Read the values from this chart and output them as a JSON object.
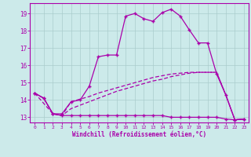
{
  "xlabel": "Windchill (Refroidissement éolien,°C)",
  "background_color": "#cceaea",
  "grid_color": "#aacccc",
  "line_color": "#aa00aa",
  "xlim": [
    -0.5,
    23.5
  ],
  "ylim": [
    12.7,
    19.6
  ],
  "yticks": [
    13,
    14,
    15,
    16,
    17,
    18,
    19
  ],
  "xticks": [
    0,
    1,
    2,
    3,
    4,
    5,
    6,
    7,
    8,
    9,
    10,
    11,
    12,
    13,
    14,
    15,
    16,
    17,
    18,
    19,
    20,
    21,
    22,
    23
  ],
  "line1_x": [
    0,
    1,
    2,
    3,
    4,
    5,
    6,
    7,
    8,
    9,
    10,
    11,
    12,
    13,
    14,
    15,
    16,
    17,
    18,
    19,
    20,
    21,
    22,
    23
  ],
  "line1_y": [
    14.4,
    14.1,
    13.2,
    13.1,
    13.1,
    13.1,
    13.1,
    13.1,
    13.1,
    13.1,
    13.1,
    13.1,
    13.1,
    13.1,
    13.1,
    13.0,
    13.0,
    13.0,
    13.0,
    13.0,
    13.0,
    12.9,
    12.85,
    12.9
  ],
  "line2_x": [
    0,
    1,
    2,
    3,
    4,
    5,
    6,
    7,
    8,
    9,
    10,
    11,
    12,
    13,
    14,
    15,
    16,
    17,
    18,
    19,
    20,
    21,
    22,
    23
  ],
  "line2_y": [
    14.4,
    14.1,
    13.2,
    13.2,
    13.9,
    14.0,
    14.8,
    16.5,
    16.6,
    16.6,
    18.85,
    19.0,
    18.7,
    18.55,
    19.05,
    19.25,
    18.85,
    18.05,
    17.3,
    17.3,
    15.5,
    14.3,
    12.85,
    12.9
  ],
  "line3_x": [
    0,
    2,
    3,
    4,
    5,
    6,
    7,
    8,
    9,
    10,
    11,
    12,
    13,
    14,
    15,
    16,
    17,
    18,
    19,
    20,
    21,
    22,
    23
  ],
  "line3_y": [
    14.4,
    13.2,
    13.1,
    13.9,
    14.05,
    14.2,
    14.4,
    14.55,
    14.7,
    14.85,
    15.0,
    15.15,
    15.3,
    15.4,
    15.5,
    15.55,
    15.6,
    15.6,
    15.6,
    15.6,
    14.3,
    12.85,
    12.9
  ],
  "line4_x": [
    0,
    1,
    2,
    3,
    4,
    5,
    6,
    7,
    8,
    9,
    10,
    11,
    12,
    13,
    14,
    15,
    16,
    17,
    18,
    19,
    20,
    21,
    22,
    23
  ],
  "line4_y": [
    14.4,
    14.1,
    13.2,
    13.1,
    13.5,
    13.7,
    13.9,
    14.1,
    14.3,
    14.5,
    14.65,
    14.8,
    14.95,
    15.1,
    15.2,
    15.35,
    15.45,
    15.55,
    15.6,
    15.6,
    15.6,
    14.3,
    12.85,
    12.9
  ]
}
